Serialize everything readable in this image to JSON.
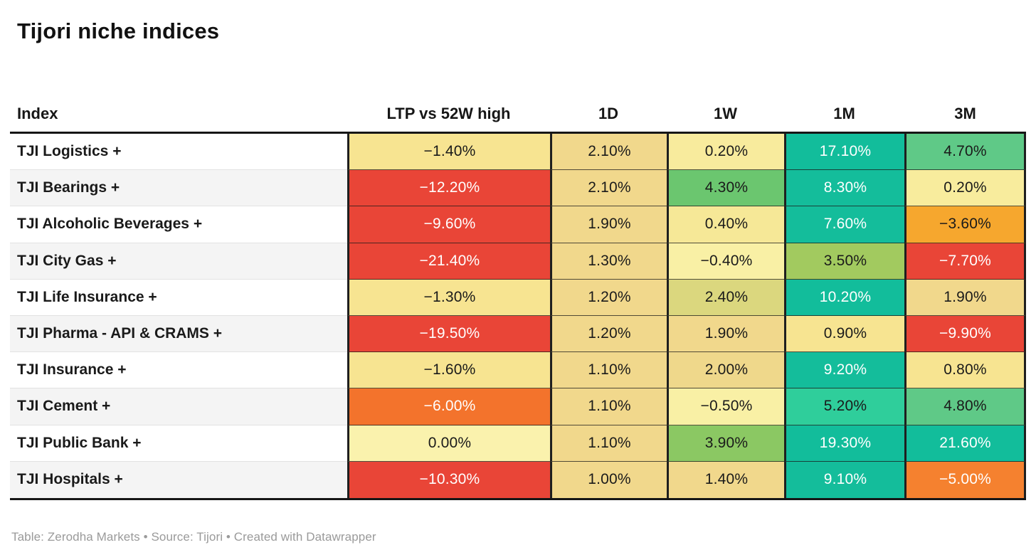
{
  "title": "Tijori niche indices",
  "footer": "Table: Zerodha Markets • Source: Tijori • Created with Datawrapper",
  "colors": {
    "text_dark": "#1A1A1A",
    "text_light": "#FFFFFF",
    "teal": "#12BD9B",
    "red": "#E94537",
    "border_dark": "#1F1F1F",
    "row_alt": "#F4F4F4"
  },
  "table": {
    "columns": [
      {
        "label": "Index"
      },
      {
        "label": "LTP vs 52W high"
      },
      {
        "label": "1D"
      },
      {
        "label": "1W"
      },
      {
        "label": "1M"
      },
      {
        "label": "3M"
      }
    ],
    "rows": [
      {
        "name": "TJI Logistics +",
        "cells": [
          {
            "v": "−1.40%",
            "bg": "#F7E491",
            "fg": "#1A1A1A"
          },
          {
            "v": "2.10%",
            "bg": "#F1D88C",
            "fg": "#1A1A1A"
          },
          {
            "v": "0.20%",
            "bg": "#F8EB9D",
            "fg": "#1A1A1A"
          },
          {
            "v": "17.10%",
            "bg": "#12BD9B",
            "fg": "#FFFFFF"
          },
          {
            "v": "4.70%",
            "bg": "#5FC987",
            "fg": "#1A1A1A"
          }
        ]
      },
      {
        "name": "TJI Bearings +",
        "cells": [
          {
            "v": "−12.20%",
            "bg": "#E94537",
            "fg": "#FFFFFF"
          },
          {
            "v": "2.10%",
            "bg": "#F1D88C",
            "fg": "#1A1A1A"
          },
          {
            "v": "4.30%",
            "bg": "#6BC66F",
            "fg": "#1A1A1A"
          },
          {
            "v": "8.30%",
            "bg": "#14BD9B",
            "fg": "#FFFFFF"
          },
          {
            "v": "0.20%",
            "bg": "#F8EC9D",
            "fg": "#1A1A1A"
          }
        ]
      },
      {
        "name": "TJI Alcoholic Beverages +",
        "cells": [
          {
            "v": "−9.60%",
            "bg": "#E94537",
            "fg": "#FFFFFF"
          },
          {
            "v": "1.90%",
            "bg": "#F1D88C",
            "fg": "#1A1A1A"
          },
          {
            "v": "0.40%",
            "bg": "#F6E897",
            "fg": "#1A1A1A"
          },
          {
            "v": "7.60%",
            "bg": "#14BD9B",
            "fg": "#FFFFFF"
          },
          {
            "v": "−3.60%",
            "bg": "#F6A72E",
            "fg": "#1A1A1A"
          }
        ]
      },
      {
        "name": "TJI City Gas +",
        "cells": [
          {
            "v": "−21.40%",
            "bg": "#E94537",
            "fg": "#FFFFFF"
          },
          {
            "v": "1.30%",
            "bg": "#F1D88C",
            "fg": "#1A1A1A"
          },
          {
            "v": "−0.40%",
            "bg": "#F9F0A5",
            "fg": "#1A1A1A"
          },
          {
            "v": "3.50%",
            "bg": "#A2CA5F",
            "fg": "#1A1A1A"
          },
          {
            "v": "−7.70%",
            "bg": "#E94537",
            "fg": "#FFFFFF"
          }
        ]
      },
      {
        "name": "TJI Life Insurance +",
        "cells": [
          {
            "v": "−1.30%",
            "bg": "#F7E491",
            "fg": "#1A1A1A"
          },
          {
            "v": "1.20%",
            "bg": "#F1D88C",
            "fg": "#1A1A1A"
          },
          {
            "v": "2.40%",
            "bg": "#DBD77E",
            "fg": "#1A1A1A"
          },
          {
            "v": "10.20%",
            "bg": "#12BD9B",
            "fg": "#FFFFFF"
          },
          {
            "v": "1.90%",
            "bg": "#F1D88C",
            "fg": "#1A1A1A"
          }
        ]
      },
      {
        "name": "TJI Pharma - API & CRAMS +",
        "cells": [
          {
            "v": "−19.50%",
            "bg": "#E94537",
            "fg": "#FFFFFF"
          },
          {
            "v": "1.20%",
            "bg": "#F1D88C",
            "fg": "#1A1A1A"
          },
          {
            "v": "1.90%",
            "bg": "#F1D88C",
            "fg": "#1A1A1A"
          },
          {
            "v": "0.90%",
            "bg": "#F7E491",
            "fg": "#1A1A1A"
          },
          {
            "v": "−9.90%",
            "bg": "#E94537",
            "fg": "#FFFFFF"
          }
        ]
      },
      {
        "name": "TJI Insurance +",
        "cells": [
          {
            "v": "−1.60%",
            "bg": "#F7E491",
            "fg": "#1A1A1A"
          },
          {
            "v": "1.10%",
            "bg": "#F1D88C",
            "fg": "#1A1A1A"
          },
          {
            "v": "2.00%",
            "bg": "#EFD88B",
            "fg": "#1A1A1A"
          },
          {
            "v": "9.20%",
            "bg": "#14BD9B",
            "fg": "#FFFFFF"
          },
          {
            "v": "0.80%",
            "bg": "#F7E491",
            "fg": "#1A1A1A"
          }
        ]
      },
      {
        "name": "TJI Cement +",
        "cells": [
          {
            "v": "−6.00%",
            "bg": "#F3732C",
            "fg": "#FFFFFF"
          },
          {
            "v": "1.10%",
            "bg": "#F1D88C",
            "fg": "#1A1A1A"
          },
          {
            "v": "−0.50%",
            "bg": "#F9F0A5",
            "fg": "#1A1A1A"
          },
          {
            "v": "5.20%",
            "bg": "#2FCE9B",
            "fg": "#1A1A1A"
          },
          {
            "v": "4.80%",
            "bg": "#5FC987",
            "fg": "#1A1A1A"
          }
        ]
      },
      {
        "name": "TJI Public Bank +",
        "cells": [
          {
            "v": "0.00%",
            "bg": "#FAF2AD",
            "fg": "#1A1A1A"
          },
          {
            "v": "1.10%",
            "bg": "#F1D88C",
            "fg": "#1A1A1A"
          },
          {
            "v": "3.90%",
            "bg": "#8BC863",
            "fg": "#1A1A1A"
          },
          {
            "v": "19.30%",
            "bg": "#12BD9B",
            "fg": "#FFFFFF"
          },
          {
            "v": "21.60%",
            "bg": "#12BD9B",
            "fg": "#FFFFFF"
          }
        ]
      },
      {
        "name": "TJI Hospitals +",
        "cells": [
          {
            "v": "−10.30%",
            "bg": "#E94537",
            "fg": "#FFFFFF"
          },
          {
            "v": "1.00%",
            "bg": "#F1D88C",
            "fg": "#1A1A1A"
          },
          {
            "v": "1.40%",
            "bg": "#F1D88C",
            "fg": "#1A1A1A"
          },
          {
            "v": "9.10%",
            "bg": "#14BD9B",
            "fg": "#FFFFFF"
          },
          {
            "v": "−5.00%",
            "bg": "#F5812F",
            "fg": "#FFFFFF"
          }
        ]
      }
    ]
  },
  "chart_data": {
    "type": "table",
    "title": "Tijori niche indices",
    "categories": [
      "TJI Logistics +",
      "TJI Bearings +",
      "TJI Alcoholic Beverages +",
      "TJI City Gas +",
      "TJI Life Insurance +",
      "TJI Pharma - API & CRAMS +",
      "TJI Insurance +",
      "TJI Cement +",
      "TJI Public Bank +",
      "TJI Hospitals +"
    ],
    "series": [
      {
        "name": "LTP vs 52W high",
        "values": [
          -1.4,
          -12.2,
          -9.6,
          -21.4,
          -1.3,
          -19.5,
          -1.6,
          -6.0,
          0.0,
          -10.3
        ]
      },
      {
        "name": "1D",
        "values": [
          2.1,
          2.1,
          1.9,
          1.3,
          1.2,
          1.2,
          1.1,
          1.1,
          1.1,
          1.0
        ]
      },
      {
        "name": "1W",
        "values": [
          0.2,
          4.3,
          0.4,
          -0.4,
          2.4,
          1.9,
          2.0,
          -0.5,
          3.9,
          1.4
        ]
      },
      {
        "name": "1M",
        "values": [
          17.1,
          8.3,
          7.6,
          3.5,
          10.2,
          0.9,
          9.2,
          5.2,
          19.3,
          9.1
        ]
      },
      {
        "name": "3M",
        "values": [
          4.7,
          0.2,
          -3.6,
          -7.7,
          1.9,
          -9.9,
          0.8,
          4.8,
          21.6,
          -5.0
        ]
      }
    ],
    "value_unit": "%",
    "style": "heatmap-colored cells, red negative to teal positive",
    "footer": "Table: Zerodha Markets • Source: Tijori • Created with Datawrapper"
  }
}
